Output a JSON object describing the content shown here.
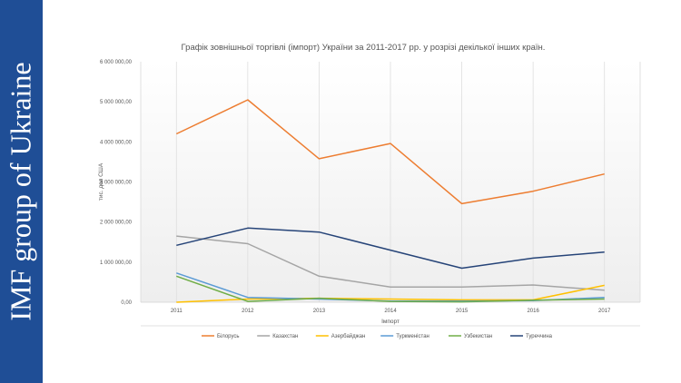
{
  "slide": {
    "side_title": "IMF group of Ukraine",
    "accent_color": "#1f4e96"
  },
  "chart_data": {
    "type": "line",
    "title": "Графік зовнішньої торгівлі (імпорт) України за 2011-2017 рр. у розрізі декілької інших країн.",
    "xlabel": "Імпорт",
    "ylabel": "тис. дол США",
    "categories": [
      "2011",
      "2012",
      "2013",
      "2014",
      "2015",
      "2016",
      "2017"
    ],
    "ylim": [
      0,
      6000000
    ],
    "yticks": [
      0,
      1000000,
      2000000,
      3000000,
      4000000,
      5000000,
      6000000
    ],
    "ytick_labels": [
      "0,00",
      "1 000 000,00",
      "2 000 000,00",
      "3 000 000,00",
      "4 000 000,00",
      "5 000 000,00",
      "6 000 000,00"
    ],
    "legend_position": "bottom",
    "series": [
      {
        "name": "Білорусь",
        "color": "#ed7d31",
        "values": [
          4200000,
          5050000,
          3580000,
          3960000,
          2460000,
          2770000,
          3200000
        ]
      },
      {
        "name": "Казахстан",
        "color": "#a5a5a5",
        "values": [
          1650000,
          1460000,
          650000,
          380000,
          380000,
          430000,
          300000
        ]
      },
      {
        "name": "Азербайджан",
        "color": "#ffc000",
        "values": [
          0,
          80000,
          100000,
          80000,
          60000,
          60000,
          420000
        ]
      },
      {
        "name": "Туркменістан",
        "color": "#5b9bd5",
        "values": [
          730000,
          120000,
          80000,
          30000,
          30000,
          40000,
          120000
        ]
      },
      {
        "name": "Узбекистан",
        "color": "#70ad47",
        "values": [
          650000,
          20000,
          100000,
          20000,
          10000,
          50000,
          80000
        ]
      },
      {
        "name": "Туреччина",
        "color": "#264478",
        "values": [
          1420000,
          1850000,
          1750000,
          1300000,
          850000,
          1100000,
          1250000
        ]
      }
    ]
  }
}
